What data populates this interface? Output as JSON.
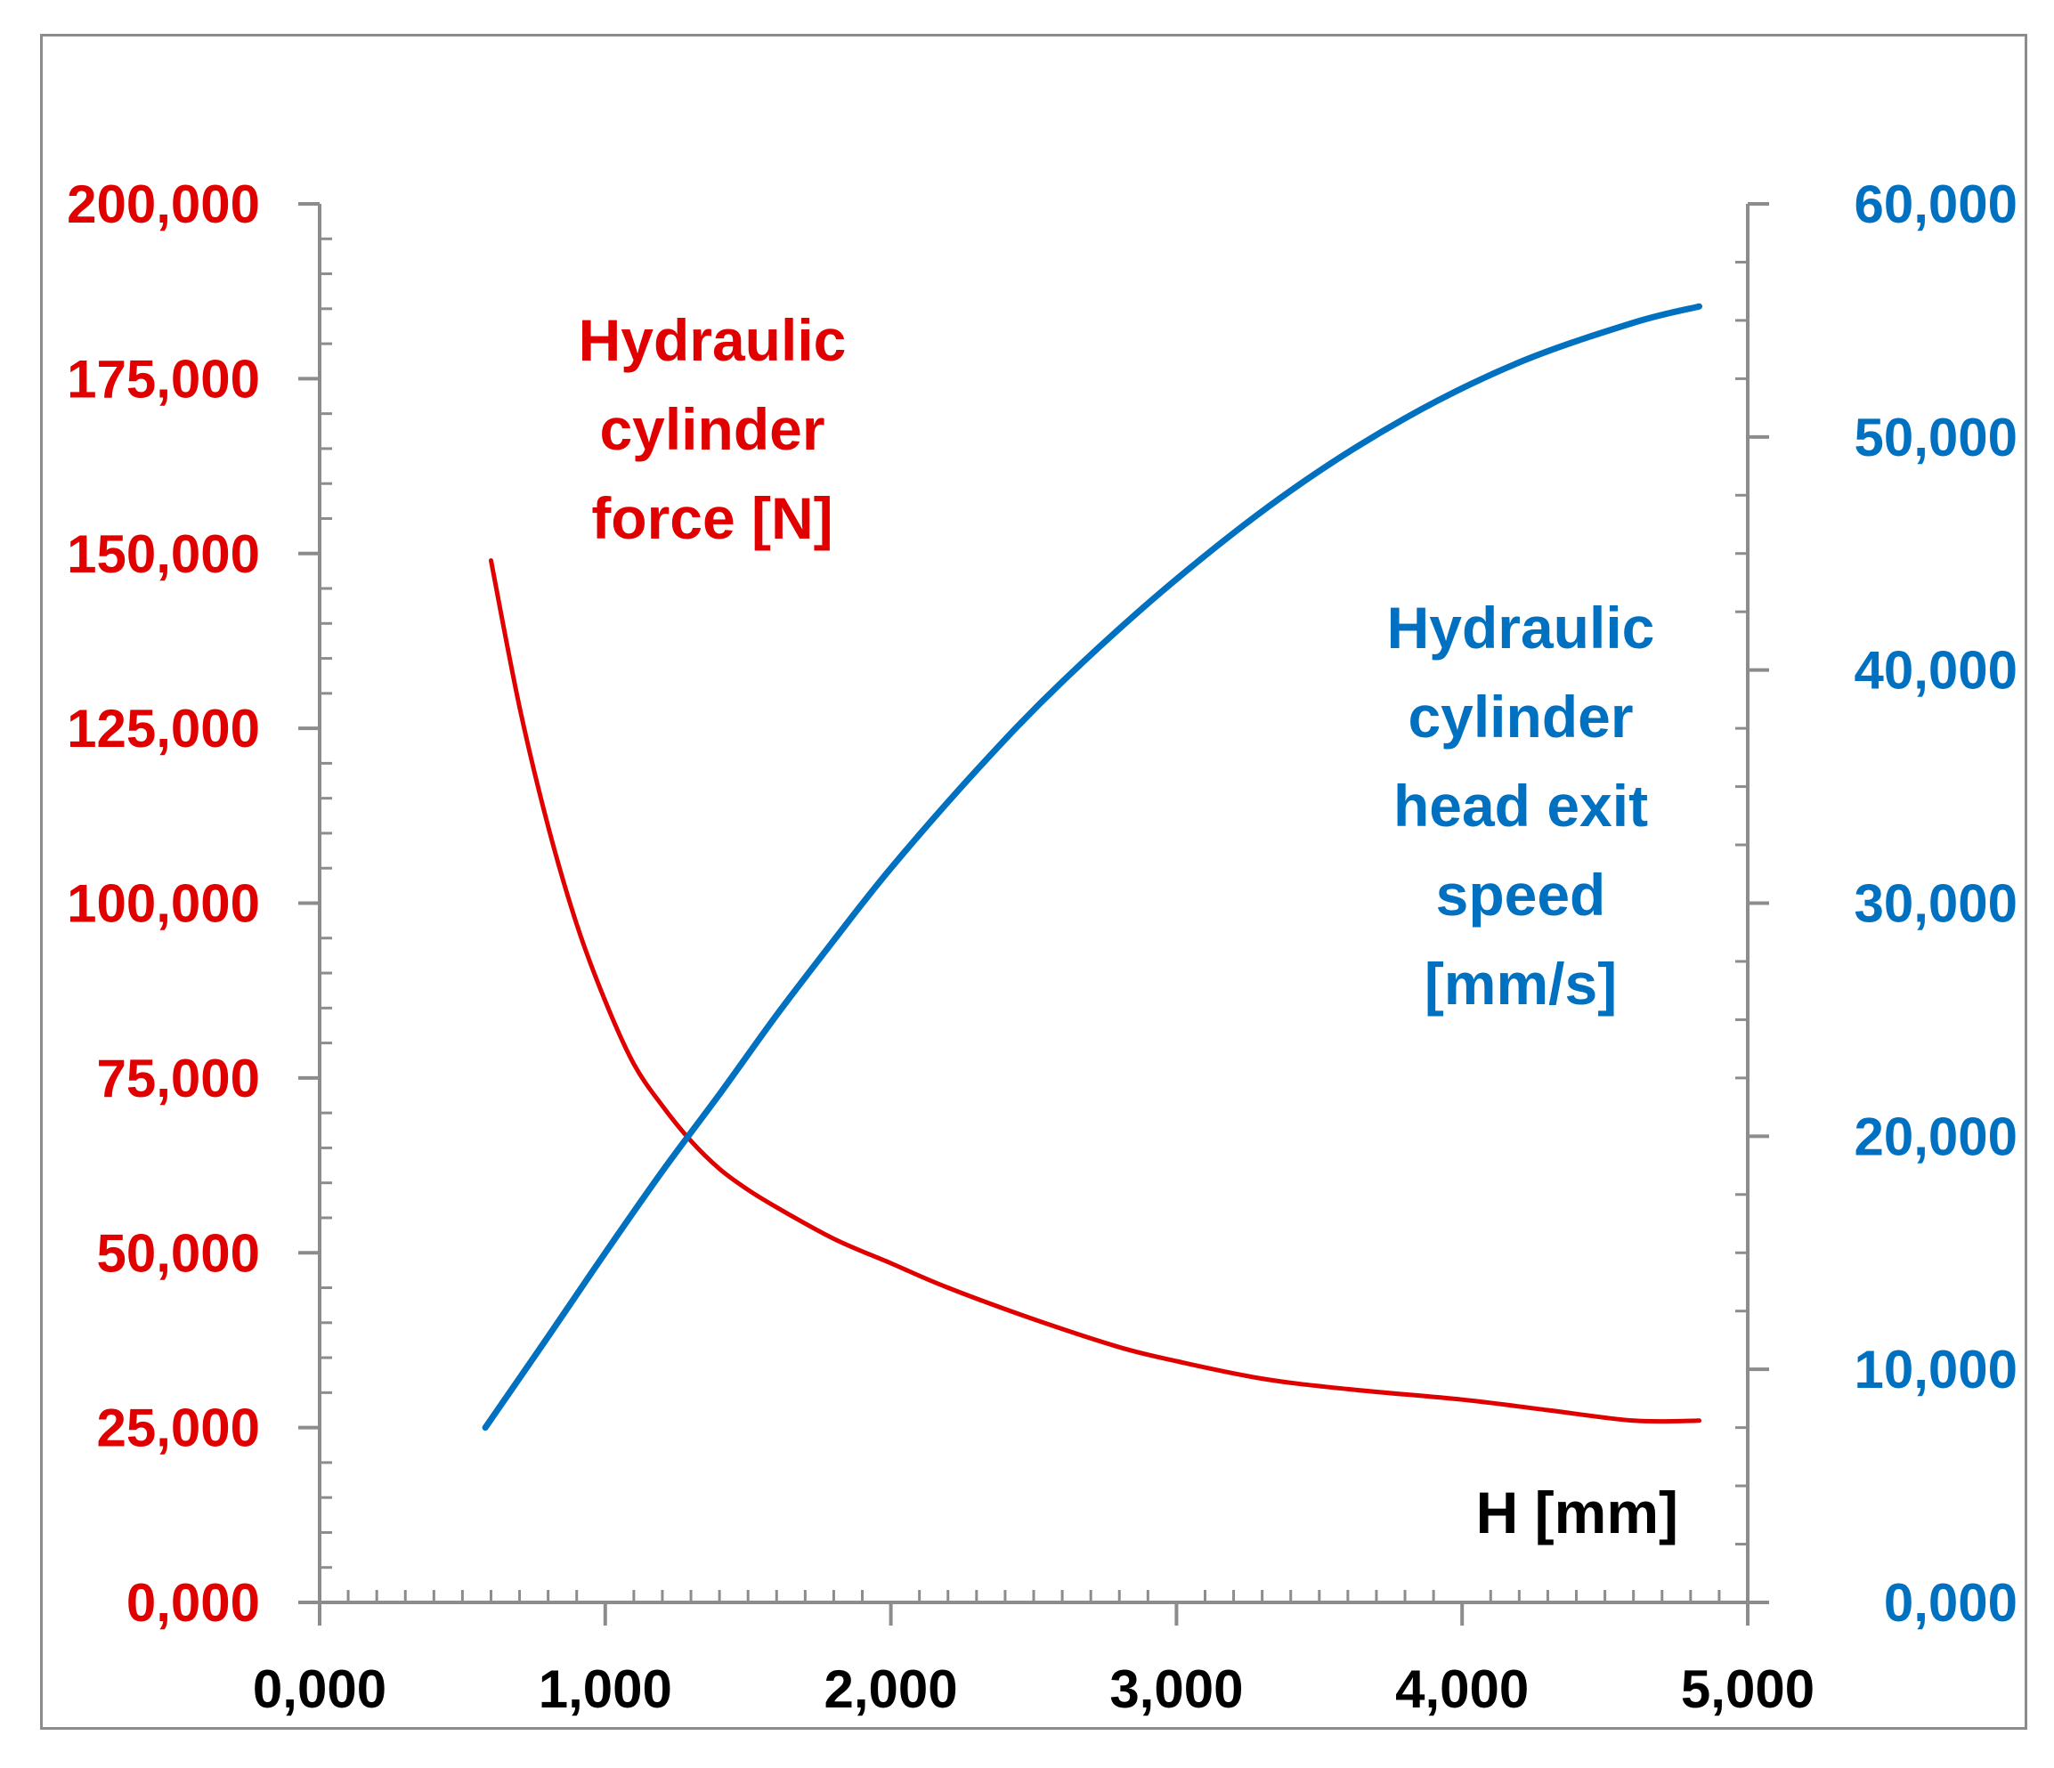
{
  "chart_data": {
    "type": "line",
    "title": "",
    "xlabel": "H [mm]",
    "xlim": [
      0,
      5
    ],
    "x_ticks": [
      "0,000",
      "1,000",
      "2,000",
      "3,000",
      "4,000",
      "5,000"
    ],
    "y_left": {
      "label": "Hydraulic cylinder force [N]",
      "label_lines": [
        "Hydraulic",
        "cylinder",
        "force [N]"
      ],
      "lim": [
        0,
        200000
      ],
      "ticks": [
        "0,000",
        "25,000",
        "50,000",
        "75,000",
        "100,000",
        "125,000",
        "150,000",
        "175,000",
        "200,000"
      ],
      "color": "#e00000"
    },
    "y_right": {
      "label": "Hydraulic cylinder head exit speed [mm/s]",
      "label_lines": [
        "Hydraulic",
        "cylinder",
        "head exit",
        "speed",
        "[mm/s]"
      ],
      "lim": [
        0,
        60000
      ],
      "ticks": [
        "0,000",
        "10,000",
        "20,000",
        "30,000",
        "40,000",
        "50,000",
        "60,000"
      ],
      "color": "#0070c0"
    },
    "series": [
      {
        "name": "Hydraulic cylinder force [N]",
        "axis": "left",
        "color": "#e00000",
        "x": [
          0.6,
          0.7,
          0.8,
          0.9,
          1.0,
          1.1,
          1.2,
          1.3,
          1.4,
          1.5,
          1.6,
          1.8,
          2.0,
          2.2,
          2.5,
          2.8,
          3.0,
          3.3,
          3.6,
          4.0,
          4.3,
          4.6,
          4.83
        ],
        "values": [
          149000,
          128000,
          111000,
          97000,
          86000,
          77000,
          71000,
          66000,
          62000,
          59000,
          56500,
          52000,
          48500,
          45000,
          40500,
          36500,
          34500,
          32000,
          30500,
          29000,
          27500,
          26000,
          26000
        ]
      },
      {
        "name": "Hydraulic cylinder head exit speed [mm/s]",
        "axis": "right",
        "color": "#0070c0",
        "x": [
          0.58,
          0.8,
          1.0,
          1.2,
          1.4,
          1.6,
          1.8,
          2.0,
          2.3,
          2.6,
          3.0,
          3.4,
          3.8,
          4.2,
          4.6,
          4.83
        ],
        "values": [
          7500,
          11400,
          15000,
          18500,
          21800,
          25200,
          28400,
          31500,
          35700,
          39500,
          43900,
          47700,
          50800,
          53200,
          54900,
          55600
        ]
      }
    ]
  }
}
